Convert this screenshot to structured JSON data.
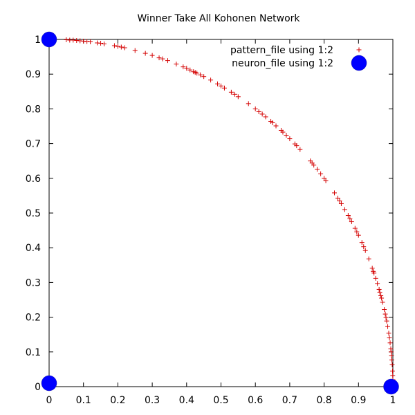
{
  "chart_data": {
    "type": "scatter",
    "title": "Winner Take All Kohonen Network",
    "xlabel": "",
    "ylabel": "",
    "xlim": [
      0,
      1
    ],
    "ylim": [
      0,
      1
    ],
    "x_ticks": [
      "0",
      "0.1",
      "0.2",
      "0.3",
      "0.4",
      "0.5",
      "0.6",
      "0.7",
      "0.8",
      "0.9",
      "1"
    ],
    "y_ticks": [
      "0",
      "0.1",
      "0.2",
      "0.3",
      "0.4",
      "0.5",
      "0.6",
      "0.7",
      "0.8",
      "0.9",
      "1"
    ],
    "grid": false,
    "legend_position": "top-right",
    "series": [
      {
        "name": "pattern_file using 1:2",
        "marker": "plus",
        "color": "#d40000",
        "points": [
          [
            0.05,
            0.999
          ],
          [
            0.06,
            0.998
          ],
          [
            0.07,
            0.998
          ],
          [
            0.08,
            0.997
          ],
          [
            0.09,
            0.996
          ],
          [
            0.1,
            0.995
          ],
          [
            0.11,
            0.994
          ],
          [
            0.12,
            0.993
          ],
          [
            0.14,
            0.99
          ],
          [
            0.15,
            0.989
          ],
          [
            0.16,
            0.987
          ],
          [
            0.19,
            0.982
          ],
          [
            0.2,
            0.98
          ],
          [
            0.21,
            0.978
          ],
          [
            0.22,
            0.976
          ],
          [
            0.25,
            0.968
          ],
          [
            0.28,
            0.96
          ],
          [
            0.3,
            0.954
          ],
          [
            0.32,
            0.947
          ],
          [
            0.33,
            0.944
          ],
          [
            0.37,
            0.929
          ],
          [
            0.39,
            0.921
          ],
          [
            0.4,
            0.917
          ],
          [
            0.41,
            0.912
          ],
          [
            0.42,
            0.907
          ],
          [
            0.43,
            0.903
          ],
          [
            0.44,
            0.898
          ],
          [
            0.45,
            0.893
          ],
          [
            0.47,
            0.883
          ],
          [
            0.49,
            0.872
          ],
          [
            0.5,
            0.866
          ],
          [
            0.51,
            0.86
          ],
          [
            0.53,
            0.848
          ],
          [
            0.54,
            0.842
          ],
          [
            0.55,
            0.835
          ],
          [
            0.58,
            0.815
          ],
          [
            0.6,
            0.8
          ],
          [
            0.62,
            0.785
          ],
          [
            0.63,
            0.777
          ],
          [
            0.65,
            0.76
          ],
          [
            0.66,
            0.751
          ],
          [
            0.68,
            0.733
          ],
          [
            0.69,
            0.724
          ],
          [
            0.7,
            0.714
          ],
          [
            0.72,
            0.694
          ],
          [
            0.73,
            0.683
          ],
          [
            0.76,
            0.65
          ],
          [
            0.77,
            0.638
          ],
          [
            0.78,
            0.626
          ],
          [
            0.79,
            0.613
          ],
          [
            0.8,
            0.6
          ],
          [
            0.83,
            0.558
          ],
          [
            0.84,
            0.543
          ],
          [
            0.85,
            0.527
          ],
          [
            0.86,
            0.51
          ],
          [
            0.87,
            0.493
          ],
          [
            0.88,
            0.475
          ],
          [
            0.89,
            0.456
          ],
          [
            0.9,
            0.436
          ],
          [
            0.91,
            0.415
          ],
          [
            0.92,
            0.392
          ],
          [
            0.93,
            0.368
          ],
          [
            0.94,
            0.341
          ],
          [
            0.945,
            0.327
          ],
          [
            0.95,
            0.312
          ],
          [
            0.955,
            0.297
          ],
          [
            0.96,
            0.28
          ],
          [
            0.965,
            0.262
          ],
          [
            0.97,
            0.243
          ],
          [
            0.975,
            0.222
          ],
          [
            0.978,
            0.209
          ],
          [
            0.98,
            0.199
          ],
          [
            0.982,
            0.189
          ],
          [
            0.985,
            0.173
          ],
          [
            0.988,
            0.154
          ],
          [
            0.99,
            0.141
          ],
          [
            0.992,
            0.126
          ],
          [
            0.994,
            0.109
          ],
          [
            0.995,
            0.1
          ],
          [
            0.996,
            0.089
          ],
          [
            0.997,
            0.077
          ],
          [
            0.998,
            0.063
          ],
          [
            0.999,
            0.045
          ],
          [
            0.9995,
            0.032
          ],
          [
            1.0,
            0.02
          ],
          [
            0.967,
            0.255
          ],
          [
            0.962,
            0.272
          ],
          [
            0.943,
            0.332
          ],
          [
            0.915,
            0.403
          ],
          [
            0.895,
            0.446
          ],
          [
            0.875,
            0.484
          ],
          [
            0.845,
            0.535
          ],
          [
            0.805,
            0.593
          ],
          [
            0.765,
            0.644
          ],
          [
            0.715,
            0.699
          ],
          [
            0.675,
            0.738
          ],
          [
            0.645,
            0.764
          ],
          [
            0.61,
            0.792
          ],
          [
            0.425,
            0.905
          ],
          [
            0.345,
            0.939
          ]
        ]
      },
      {
        "name": "neuron_file using 1:2",
        "marker": "circle",
        "color": "#0000ff",
        "points": [
          [
            0.0,
            1.0
          ],
          [
            0.0,
            0.01
          ],
          [
            0.995,
            0.0
          ]
        ]
      }
    ]
  }
}
